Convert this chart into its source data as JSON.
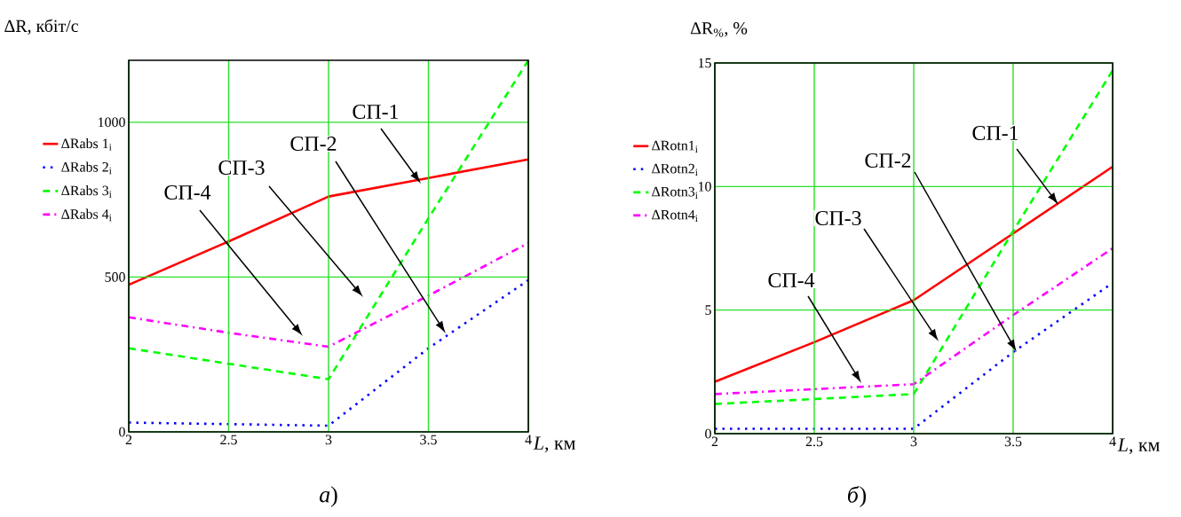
{
  "chart_data": [
    {
      "type": "line",
      "xlabel": "*L*, км",
      "ylabel": "ΔR, кбіт/с",
      "x": [
        2,
        2.5,
        3,
        3.5,
        4
      ],
      "xlim": [
        2,
        4
      ],
      "ylim": [
        0,
        1200
      ],
      "xticks": [
        2,
        2.5,
        3,
        3.5,
        4
      ],
      "yticks": [
        0,
        500,
        1000
      ],
      "grid": true,
      "legend": "left",
      "series": [
        {
          "name": "ΔRabs 1$_{i}$",
          "color": "#ff0000",
          "line_style": "solid",
          "values": [
            475,
            615,
            760,
            820,
            880
          ]
        },
        {
          "name": "ΔRabs 2$_{i}$",
          "color": "#0000ff",
          "line_style": "dotted",
          "values": [
            30,
            25,
            20,
            270,
            490
          ]
        },
        {
          "name": "ΔRabs 3$_{i}$",
          "color": "#00ff00",
          "line_style": "dashed",
          "values": [
            270,
            220,
            170,
            690,
            1200
          ]
        },
        {
          "name": "ΔRabs 4$_{i}$",
          "color": "#ff00ff",
          "line_style": "dashdot",
          "values": [
            370,
            320,
            275,
            440,
            610
          ]
        }
      ],
      "annotations": [
        "СП-1",
        "СП-2",
        "СП-3",
        "СП-4",
        "*а*)"
      ]
    },
    {
      "type": "line",
      "xlabel": "*L*, км",
      "ylabel": "ΔR$_{%}$, %",
      "x": [
        2,
        2.5,
        3,
        3.5,
        4
      ],
      "xlim": [
        2,
        4
      ],
      "ylim": [
        0,
        15
      ],
      "xticks": [
        2,
        2.5,
        3,
        3.5,
        4
      ],
      "yticks": [
        0,
        5,
        10,
        15
      ],
      "grid": true,
      "legend": "left",
      "series": [
        {
          "name": "ΔRotn1$_{i}$",
          "color": "#ff0000",
          "line_style": "solid",
          "values": [
            2.1,
            3.7,
            5.4,
            8.1,
            10.8
          ]
        },
        {
          "name": "ΔRotn2$_{i}$",
          "color": "#0000ff",
          "line_style": "dotted",
          "values": [
            0.2,
            0.2,
            0.2,
            3.3,
            6.1
          ]
        },
        {
          "name": "ΔRotn3$_{i}$",
          "color": "#00ff00",
          "line_style": "dashed",
          "values": [
            1.2,
            1.4,
            1.6,
            8.2,
            14.7
          ]
        },
        {
          "name": "ΔRotn4$_{i}$",
          "color": "#ff00ff",
          "line_style": "dashdot",
          "values": [
            1.6,
            1.8,
            2.0,
            4.8,
            7.5
          ]
        }
      ],
      "annotations": [
        "СП-1",
        "СП-2",
        "СП-3",
        "СП-4",
        "*б*)"
      ]
    }
  ]
}
